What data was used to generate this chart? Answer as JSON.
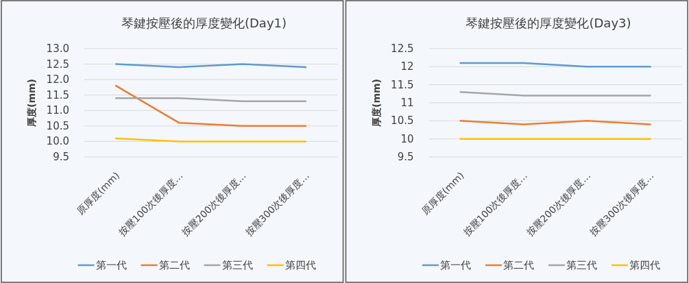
{
  "chart_data": [
    {
      "type": "line",
      "title": "琴鍵按壓後的厚度變化(Day1)",
      "ylabel": "厚度(mm)",
      "categories": [
        "原厚度(mm)",
        "按壓100次後厚度…",
        "按壓200次後厚度…",
        "按壓300次後厚度…"
      ],
      "series": [
        {
          "name": "第一代",
          "color": "#5b9bd5",
          "values": [
            12.5,
            12.4,
            12.5,
            12.4
          ]
        },
        {
          "name": "第二代",
          "color": "#ed7d31",
          "values": [
            11.8,
            10.6,
            10.5,
            10.5
          ]
        },
        {
          "name": "第三代",
          "color": "#a5a5a5",
          "values": [
            11.4,
            11.4,
            11.3,
            11.3
          ]
        },
        {
          "name": "第四代",
          "color": "#ffc000",
          "values": [
            10.1,
            10.0,
            10.0,
            10.0
          ]
        }
      ],
      "ylim": [
        9.5,
        13
      ],
      "yticks": [
        9.5,
        {
          "value": 10,
          "label": "10.0"
        },
        10.5,
        {
          "value": 11,
          "label": "11.0"
        },
        11.5,
        {
          "value": 12,
          "label": "12.0"
        },
        12.5,
        {
          "value": 13,
          "label": "13.0"
        }
      ],
      "grid": "y",
      "legend": "bottom"
    },
    {
      "type": "line",
      "title": "琴鍵按壓後的厚度變化(Day3)",
      "ylabel": "厚度(mm)",
      "categories": [
        "原厚度(mm)",
        "按壓100次後厚度…",
        "按壓200次後厚度…",
        "按壓300次後厚度…"
      ],
      "series": [
        {
          "name": "第一代",
          "color": "#5b9bd5",
          "values": [
            12.1,
            12.1,
            12.0,
            12.0
          ]
        },
        {
          "name": "第二代",
          "color": "#ed7d31",
          "values": [
            10.5,
            10.4,
            10.5,
            10.4
          ]
        },
        {
          "name": "第三代",
          "color": "#a5a5a5",
          "values": [
            11.3,
            11.2,
            11.2,
            11.2
          ]
        },
        {
          "name": "第四代",
          "color": "#ffc000",
          "values": [
            10,
            10,
            10,
            10
          ]
        }
      ],
      "ylim": [
        9.5,
        12.5
      ],
      "yticks": [
        9.5,
        10,
        10.5,
        11,
        11.5,
        12,
        12.5
      ],
      "grid": "y",
      "legend": "bottom"
    }
  ]
}
